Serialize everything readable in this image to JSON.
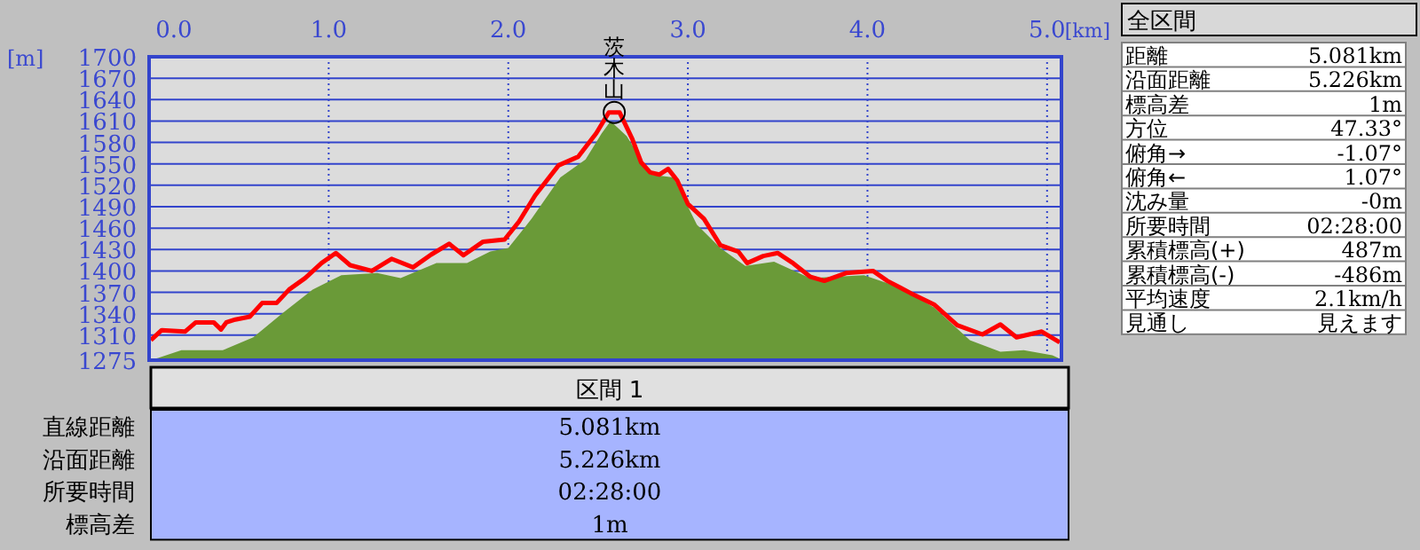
{
  "chart_data": [
    {
      "type": "area",
      "ylabel": "[m]",
      "xlabel": "[km]",
      "xlim": [
        0,
        5.08
      ],
      "ylim": [
        1275,
        1700
      ],
      "xticks": [
        {
          "value": 0,
          "label": "0.0"
        },
        {
          "value": 1,
          "label": "1.0"
        },
        {
          "value": 2,
          "label": "2.0"
        },
        {
          "value": 3,
          "label": "3.0"
        },
        {
          "value": 4,
          "label": "4.0"
        },
        {
          "value": 5,
          "label": "5.0"
        }
      ],
      "yticks": [
        1275,
        1310,
        1340,
        1370,
        1400,
        1430,
        1460,
        1490,
        1520,
        1550,
        1580,
        1610,
        1640,
        1670,
        1700
      ],
      "grid": true,
      "series": [
        {
          "type": "area",
          "color": "#6a9a38",
          "x": [
            0,
            0.05,
            0.18,
            0.41,
            0.58,
            0.74,
            0.91,
            1.07,
            1.27,
            1.4,
            1.6,
            1.77,
            1.9,
            2.0,
            2.13,
            2.29,
            2.43,
            2.52,
            2.57,
            2.66,
            2.79,
            2.92,
            3.05,
            3.18,
            3.32,
            3.48,
            3.68,
            3.98,
            4.17,
            4.37,
            4.57,
            4.74,
            4.87,
            5.03,
            5.08
          ],
          "values": [
            1275,
            1278,
            1289,
            1289,
            1307,
            1340,
            1374,
            1394,
            1397,
            1390,
            1411,
            1411,
            1427,
            1432,
            1473,
            1531,
            1556,
            1593,
            1610,
            1589,
            1535,
            1531,
            1465,
            1432,
            1407,
            1413,
            1390,
            1394,
            1378,
            1349,
            1303,
            1287,
            1289,
            1282,
            1276
          ]
        },
        {
          "type": "line",
          "color": "#ff0000",
          "x": [
            0.01,
            0.07,
            0.2,
            0.26,
            0.36,
            0.4,
            0.43,
            0.48,
            0.56,
            0.63,
            0.71,
            0.78,
            0.87,
            0.96,
            1.04,
            1.12,
            1.24,
            1.35,
            1.47,
            1.57,
            1.67,
            1.75,
            1.86,
            1.98,
            2.06,
            2.15,
            2.28,
            2.39,
            2.49,
            2.56,
            2.62,
            2.69,
            2.74,
            2.79,
            2.84,
            2.89,
            2.94,
            3.0,
            3.09,
            3.18,
            3.28,
            3.33,
            3.42,
            3.5,
            3.58,
            3.68,
            3.76,
            3.88,
            4.03,
            4.11,
            4.24,
            4.37,
            4.5,
            4.64,
            4.74,
            4.83,
            4.97,
            5.07
          ],
          "values": [
            1303,
            1317,
            1315,
            1328,
            1328,
            1318,
            1328,
            1332,
            1336,
            1355,
            1355,
            1374,
            1390,
            1411,
            1425,
            1408,
            1400,
            1417,
            1405,
            1423,
            1438,
            1422,
            1441,
            1444,
            1469,
            1506,
            1548,
            1560,
            1593,
            1622,
            1622,
            1585,
            1552,
            1538,
            1535,
            1543,
            1527,
            1494,
            1473,
            1436,
            1427,
            1411,
            1421,
            1425,
            1412,
            1392,
            1386,
            1397,
            1400,
            1386,
            1369,
            1353,
            1324,
            1311,
            1325,
            1307,
            1315,
            1300
          ]
        }
      ],
      "annotations": [
        {
          "text": "茨木山",
          "x": 2.59,
          "y": 1622
        }
      ]
    },
    {
      "type": "other",
      "title": "全区間",
      "annotations": [
        "距離",
        "5.081km",
        "沿面距離",
        "5.226km",
        "標高差",
        "1m",
        "方位",
        "47.33°",
        "俯角→",
        "-1.07°",
        "俯角←",
        "1.07°",
        "沈み量",
        "-0m",
        "所要時間",
        "02:28:00",
        "累積標高(+)",
        "487m",
        "累積標高(-)",
        "-486m",
        "平均速度",
        "2.1km/h",
        "見通し",
        "見えます"
      ]
    },
    {
      "type": "other",
      "title": "区間 1",
      "annotations": [
        "直線距離",
        "5.081km",
        "沿面距離",
        "5.226km",
        "所要時間",
        "02:28:00",
        "標高差",
        "1m"
      ]
    }
  ]
}
